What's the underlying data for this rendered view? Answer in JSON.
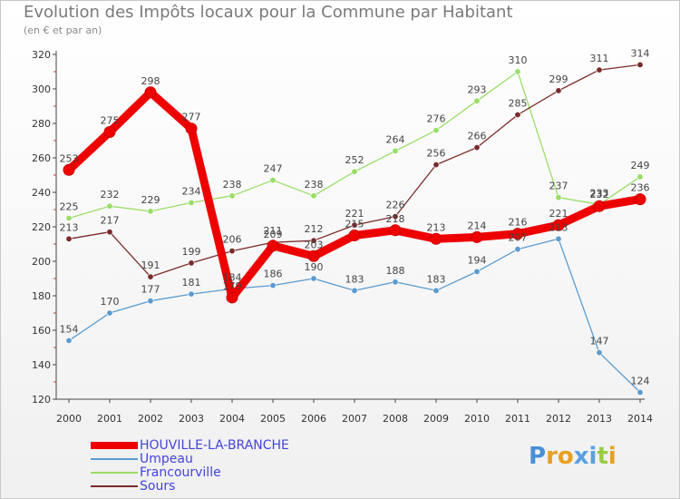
{
  "title": "Evolution des Impôts locaux pour la Commune par Habitant",
  "subtitle": "(en € et par an)",
  "logo": "Proxiti",
  "chart_data": {
    "type": "line",
    "x": [
      "2000",
      "2001",
      "2002",
      "2003",
      "2004",
      "2005",
      "2006",
      "2007",
      "2008",
      "2009",
      "2010",
      "2011",
      "2012",
      "2013",
      "2014"
    ],
    "ylim": [
      120,
      320
    ],
    "yticks": [
      120,
      140,
      160,
      180,
      200,
      220,
      240,
      260,
      280,
      300,
      320
    ],
    "grid": false,
    "legend_position": "bottom-left",
    "series": [
      {
        "name": "HOUVILLE-LA-BRANCHE",
        "color": "#ee0000",
        "values": [
          253,
          275,
          298,
          277,
          179,
          209,
          203,
          215,
          218,
          213,
          214,
          216,
          221,
          232,
          236
        ]
      },
      {
        "name": "Umpeau",
        "color": "#5a9bd0",
        "values": [
          154,
          170,
          177,
          181,
          184,
          186,
          190,
          183,
          188,
          183,
          194,
          207,
          213,
          147,
          124
        ]
      },
      {
        "name": "Francourville",
        "color": "#99dd66",
        "values": [
          225,
          232,
          229,
          234,
          238,
          247,
          238,
          252,
          264,
          276,
          293,
          310,
          237,
          233,
          249
        ]
      },
      {
        "name": "Sours",
        "color": "#7a2a2a",
        "values": [
          213,
          217,
          191,
          199,
          206,
          211,
          212,
          221,
          226,
          256,
          266,
          285,
          299,
          311,
          314
        ]
      }
    ]
  }
}
